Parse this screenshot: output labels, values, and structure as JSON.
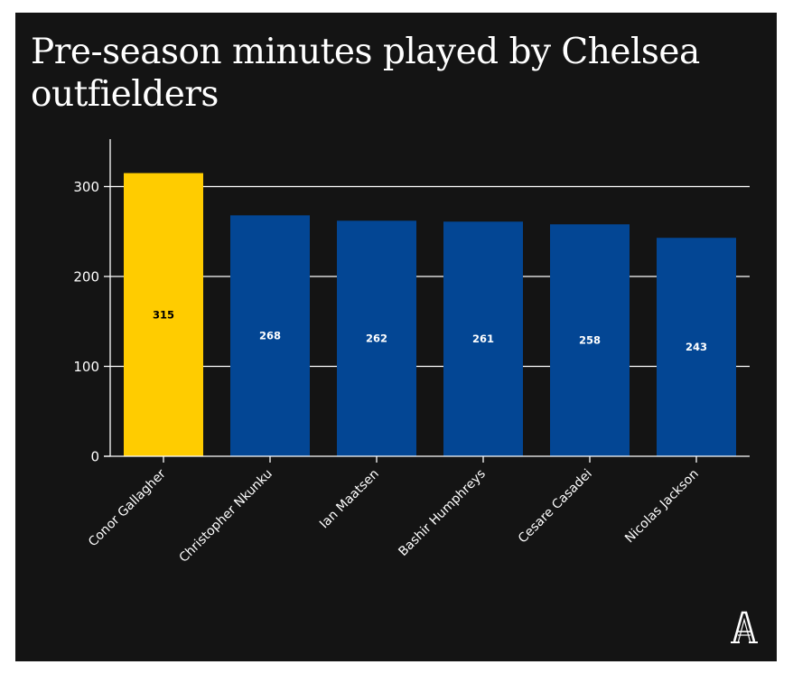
{
  "chart_data": {
    "type": "bar",
    "title": "Pre-season minutes played by Chelsea outfielders",
    "xlabel": "",
    "ylabel": "",
    "categories": [
      "Conor Gallagher",
      "Christopher Nkunku",
      "Ian Maatsen",
      "Bashir Humphreys",
      "Cesare Casadei",
      "Nicolas Jackson"
    ],
    "values": [
      315,
      268,
      262,
      261,
      258,
      243
    ],
    "data_labels": [
      "315",
      "268",
      "262",
      "261",
      "258",
      "243"
    ],
    "ylim": [
      0,
      350
    ],
    "yticks": [
      0,
      100,
      200,
      300
    ],
    "ytick_labels": [
      "0",
      "100",
      "200",
      "300"
    ],
    "grid": true,
    "bar_colors": [
      "#FFCC00",
      "#034694",
      "#034694",
      "#034694",
      "#034694",
      "#034694"
    ],
    "data_label_colors": [
      "#000000",
      "#ffffff",
      "#ffffff",
      "#ffffff",
      "#ffffff",
      "#ffffff"
    ]
  },
  "colors": {
    "background": "#141414",
    "text": "#ffffff",
    "gridline": "#ffffff",
    "highlight_bar": "#FFCC00",
    "default_bar": "#034694"
  },
  "logo": {
    "icon": "the-athletic-logo-icon"
  }
}
